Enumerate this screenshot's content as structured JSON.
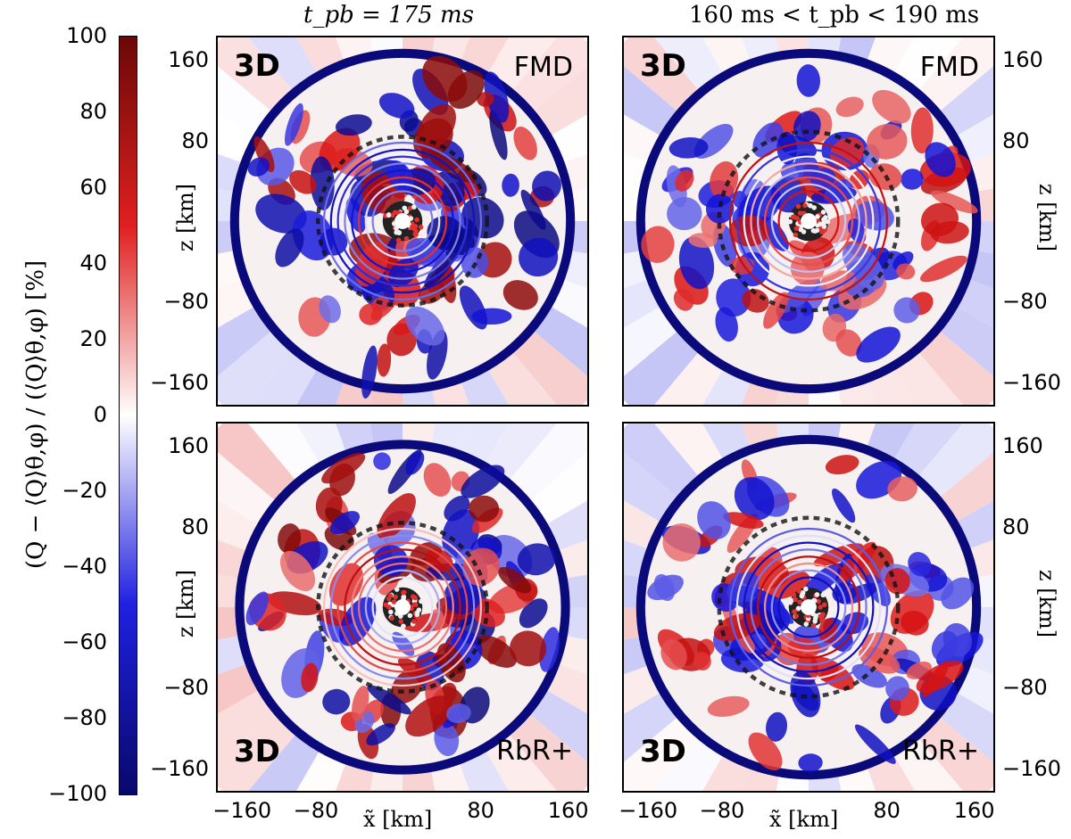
{
  "chart_data": {
    "type": "heatmap",
    "column_titles": [
      "t_pb = 175 ms",
      "160 ms < t_pb < 190 ms"
    ],
    "colorbar": {
      "label": "(Q − ⟨Q⟩θ,φ) / (⟨Q⟩θ,φ) [%]",
      "range": [
        -100,
        100
      ],
      "ticks": [
        "100",
        "80",
        "60",
        "40",
        "20",
        "0",
        "−20",
        "−40",
        "−60",
        "−80",
        "−100"
      ],
      "colors": {
        "low": "#08086b",
        "mid": "#ffffff",
        "high": "#6b0808"
      }
    },
    "xlabel": "x̃ [km]",
    "ylabel": "z [km]",
    "xticks": [
      "−160",
      "−80",
      "0",
      "80",
      "160"
    ],
    "yticks": [
      "160",
      "80",
      "−80",
      "−160"
    ],
    "axis_range_km": [
      -185,
      185
    ],
    "panels": [
      {
        "dim": "3D",
        "scheme": "FMD",
        "shock_radius_km": 165,
        "seed": 1
      },
      {
        "dim": "3D",
        "scheme": "FMD",
        "shock_radius_km": 165,
        "seed": 2
      },
      {
        "dim": "3D",
        "scheme": "RbR+",
        "shock_radius_km": 160,
        "seed": 3
      },
      {
        "dim": "3D",
        "scheme": "RbR+",
        "shock_radius_km": 165,
        "seed": 4
      }
    ]
  }
}
